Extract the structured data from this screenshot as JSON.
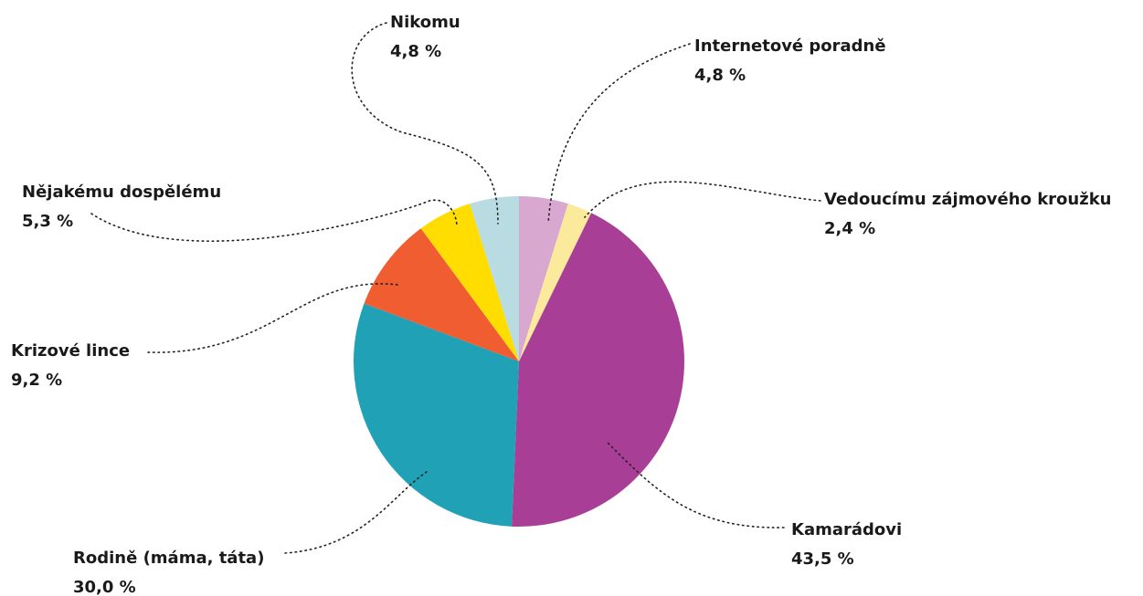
{
  "chart_data": {
    "type": "pie",
    "categories": [
      "Internetové poradně",
      "Vedoucímu zájmového kroužku",
      "Kamarádovi",
      "Rodině (máma, táta)",
      "Krizové lince",
      "Nějakému dospělému",
      "Nikomu"
    ],
    "values": [
      4.8,
      2.4,
      43.5,
      30.0,
      9.2,
      5.3,
      4.8
    ],
    "value_labels": [
      "4,8 %",
      "2,4 %",
      "43,5 %",
      "30,0 %",
      "9,2 %",
      "5,3 %",
      "4,8 %"
    ],
    "colors": [
      "#d8a8d0",
      "#fbe99c",
      "#a93e96",
      "#21a1b5",
      "#f05d30",
      "#ffdd00",
      "#b9dbe2"
    ]
  }
}
